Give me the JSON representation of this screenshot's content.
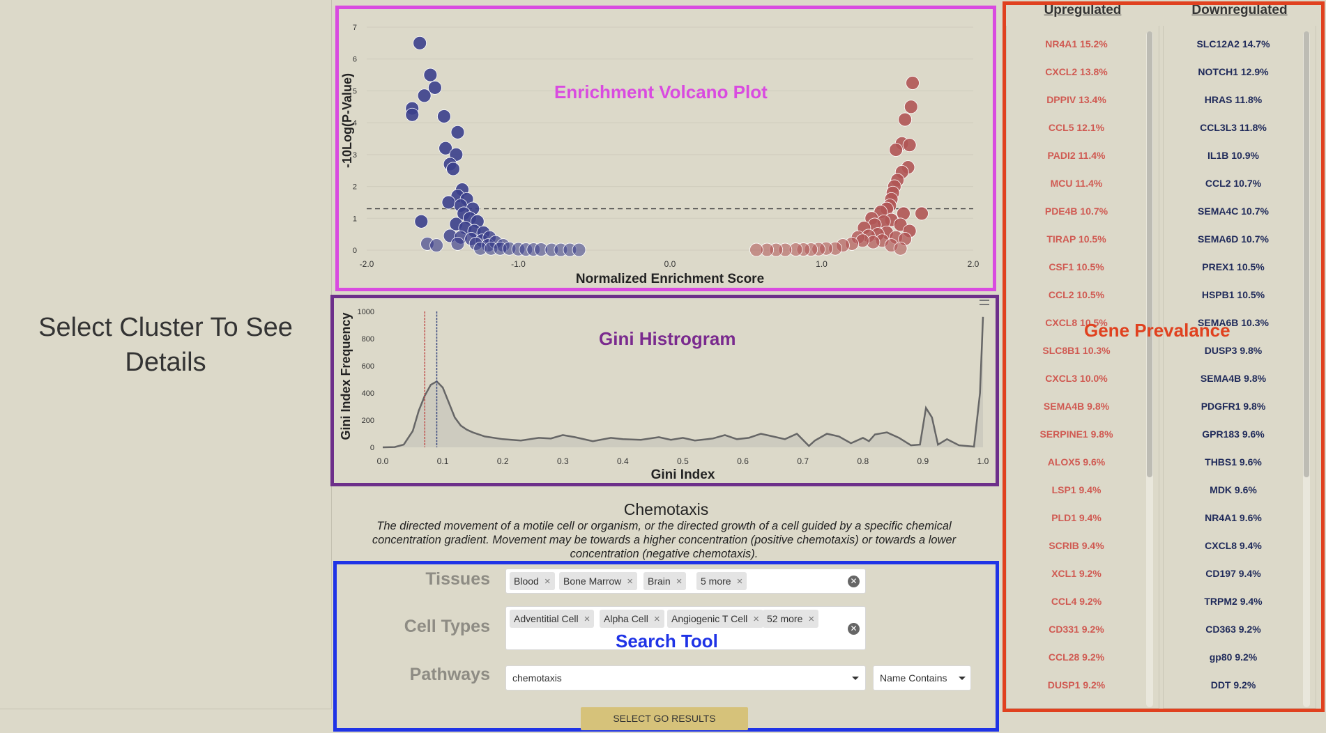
{
  "left_panel": {
    "message": "Select Cluster To See Details"
  },
  "annotations": {
    "volcano": "Enrichment Volcano Plot",
    "gini": "Gini Histrogram",
    "search": "Search Tool",
    "gene": "Gene Prevalance",
    "colors": {
      "volcano": "#d94be0",
      "gini": "#6d2f8a",
      "search": "#1f33e6",
      "gene": "#e0411f"
    }
  },
  "chart_data": [
    {
      "type": "scatter",
      "title": "",
      "xlabel": "Normalized Enrichment Score",
      "ylabel": "-10Log(P-Value)",
      "xlim": [
        -2.0,
        2.0
      ],
      "ylim": [
        0,
        7
      ],
      "x_ticks": [
        "-2.0",
        "-1.0",
        "0.0",
        "1.0",
        "2.0"
      ],
      "y_ticks": [
        "0",
        "1",
        "2",
        "3",
        "4",
        "5",
        "6",
        "7"
      ],
      "threshold_y": 1.3,
      "grid": true,
      "series": [
        {
          "color": "#3b3f8c",
          "points": [
            [
              -1.65,
              6.5
            ],
            [
              -1.58,
              5.5
            ],
            [
              -1.55,
              5.1
            ],
            [
              -1.62,
              4.85
            ],
            [
              -1.7,
              4.45
            ],
            [
              -1.7,
              4.25
            ],
            [
              -1.49,
              4.2
            ],
            [
              -1.4,
              3.7
            ],
            [
              -1.48,
              3.2
            ],
            [
              -1.41,
              3.0
            ],
            [
              -1.45,
              2.7
            ],
            [
              -1.43,
              2.55
            ],
            [
              -1.37,
              1.9
            ],
            [
              -1.4,
              1.7
            ],
            [
              -1.34,
              1.6
            ],
            [
              -1.46,
              1.5
            ],
            [
              -1.38,
              1.4
            ],
            [
              -1.3,
              1.3
            ],
            [
              -1.36,
              1.15
            ],
            [
              -1.32,
              1.0
            ],
            [
              -1.64,
              0.9
            ],
            [
              -1.27,
              0.9
            ],
            [
              -1.41,
              0.82
            ],
            [
              -1.35,
              0.7
            ],
            [
              -1.29,
              0.6
            ],
            [
              -1.23,
              0.55
            ],
            [
              -1.45,
              0.45
            ],
            [
              -1.38,
              0.4
            ],
            [
              -1.31,
              0.35
            ],
            [
              -1.24,
              0.3
            ],
            [
              -1.19,
              0.4
            ],
            [
              -1.6,
              0.2
            ],
            [
              -1.54,
              0.15
            ],
            [
              -1.4,
              0.2
            ],
            [
              -1.28,
              0.2
            ],
            [
              -1.2,
              0.15
            ],
            [
              -1.15,
              0.25
            ],
            [
              -1.1,
              0.15
            ],
            [
              -1.25,
              0.05
            ],
            [
              -1.18,
              0.05
            ],
            [
              -1.12,
              0.05
            ],
            [
              -1.06,
              0.05
            ],
            [
              -1.0,
              0.03
            ],
            [
              -0.95,
              0.02
            ],
            [
              -0.9,
              0.02
            ],
            [
              -0.85,
              0.02
            ],
            [
              -0.78,
              0.01
            ],
            [
              -0.72,
              0.01
            ],
            [
              -0.66,
              0.01
            ],
            [
              -0.6,
              0.01
            ]
          ]
        },
        {
          "color": "#b05555",
          "points": [
            [
              1.6,
              5.25
            ],
            [
              1.59,
              4.5
            ],
            [
              1.55,
              4.1
            ],
            [
              1.53,
              3.35
            ],
            [
              1.58,
              3.3
            ],
            [
              1.49,
              3.15
            ],
            [
              1.57,
              2.6
            ],
            [
              1.53,
              2.45
            ],
            [
              1.5,
              2.2
            ],
            [
              1.48,
              2.0
            ],
            [
              1.47,
              1.8
            ],
            [
              1.46,
              1.6
            ],
            [
              1.45,
              1.4
            ],
            [
              1.43,
              1.3
            ],
            [
              1.66,
              1.15
            ],
            [
              1.54,
              1.15
            ],
            [
              1.39,
              1.2
            ],
            [
              1.33,
              1.0
            ],
            [
              1.46,
              0.95
            ],
            [
              1.41,
              0.9
            ],
            [
              1.52,
              0.8
            ],
            [
              1.35,
              0.8
            ],
            [
              1.28,
              0.7
            ],
            [
              1.58,
              0.6
            ],
            [
              1.43,
              0.55
            ],
            [
              1.37,
              0.5
            ],
            [
              1.31,
              0.45
            ],
            [
              1.24,
              0.4
            ],
            [
              1.49,
              0.4
            ],
            [
              1.55,
              0.35
            ],
            [
              1.4,
              0.3
            ],
            [
              1.34,
              0.25
            ],
            [
              1.27,
              0.3
            ],
            [
              1.2,
              0.2
            ],
            [
              1.14,
              0.15
            ],
            [
              1.46,
              0.15
            ],
            [
              1.52,
              0.05
            ],
            [
              1.09,
              0.05
            ],
            [
              1.03,
              0.05
            ],
            [
              0.98,
              0.03
            ],
            [
              0.93,
              0.02
            ],
            [
              0.88,
              0.02
            ],
            [
              0.83,
              0.02
            ],
            [
              0.76,
              0.01
            ],
            [
              0.7,
              0.01
            ],
            [
              0.64,
              0.01
            ],
            [
              0.57,
              0.01
            ]
          ]
        }
      ]
    },
    {
      "type": "area",
      "title": "",
      "xlabel": "Gini Index",
      "ylabel": "Gini Index Frequency",
      "xlim": [
        0.0,
        1.0
      ],
      "ylim": [
        0,
        1000
      ],
      "x_ticks": [
        "0.0",
        "0.1",
        "0.2",
        "0.3",
        "0.4",
        "0.5",
        "0.6",
        "0.7",
        "0.8",
        "0.9",
        "1.0"
      ],
      "y_ticks": [
        "0",
        "200",
        "400",
        "600",
        "800",
        "1000"
      ],
      "markers": [
        {
          "x": 0.07,
          "color": "#c0504d"
        },
        {
          "x": 0.09,
          "color": "#3b4a80"
        }
      ],
      "points": [
        [
          0.0,
          0
        ],
        [
          0.02,
          2
        ],
        [
          0.035,
          20
        ],
        [
          0.05,
          120
        ],
        [
          0.06,
          270
        ],
        [
          0.07,
          380
        ],
        [
          0.08,
          460
        ],
        [
          0.09,
          485
        ],
        [
          0.1,
          440
        ],
        [
          0.11,
          330
        ],
        [
          0.12,
          220
        ],
        [
          0.13,
          160
        ],
        [
          0.14,
          130
        ],
        [
          0.15,
          110
        ],
        [
          0.17,
          80
        ],
        [
          0.2,
          60
        ],
        [
          0.23,
          50
        ],
        [
          0.26,
          70
        ],
        [
          0.28,
          65
        ],
        [
          0.3,
          90
        ],
        [
          0.32,
          75
        ],
        [
          0.35,
          45
        ],
        [
          0.38,
          70
        ],
        [
          0.4,
          60
        ],
        [
          0.43,
          55
        ],
        [
          0.46,
          75
        ],
        [
          0.48,
          55
        ],
        [
          0.5,
          70
        ],
        [
          0.52,
          50
        ],
        [
          0.55,
          65
        ],
        [
          0.57,
          90
        ],
        [
          0.59,
          60
        ],
        [
          0.61,
          70
        ],
        [
          0.63,
          100
        ],
        [
          0.65,
          80
        ],
        [
          0.67,
          60
        ],
        [
          0.69,
          100
        ],
        [
          0.7,
          55
        ],
        [
          0.71,
          10
        ],
        [
          0.72,
          50
        ],
        [
          0.74,
          100
        ],
        [
          0.76,
          80
        ],
        [
          0.78,
          30
        ],
        [
          0.8,
          70
        ],
        [
          0.81,
          45
        ],
        [
          0.82,
          95
        ],
        [
          0.84,
          110
        ],
        [
          0.86,
          70
        ],
        [
          0.88,
          15
        ],
        [
          0.895,
          20
        ],
        [
          0.905,
          290
        ],
        [
          0.915,
          220
        ],
        [
          0.925,
          20
        ],
        [
          0.94,
          60
        ],
        [
          0.96,
          15
        ],
        [
          0.985,
          5
        ],
        [
          0.995,
          400
        ],
        [
          1.0,
          960
        ]
      ]
    }
  ],
  "pathway": {
    "title": "Chemotaxis",
    "description": "The directed movement of a motile cell or organism, or the directed growth of a cell guided by a specific chemical concentration gradient. Movement may be towards a higher concentration (positive chemotaxis) or towards a lower concentration (negative chemotaxis)."
  },
  "search": {
    "tissues_label": "Tissues",
    "tissues": [
      "Blood",
      "Bone Marrow",
      "Brain",
      "5 more"
    ],
    "celltypes_label": "Cell Types",
    "celltypes": [
      "Adventitial Cell",
      "Alpha Cell",
      "Angiogenic T Cell",
      "52 more"
    ],
    "pathways_label": "Pathways",
    "pathway_value": "chemotaxis",
    "match_mode": "Name Contains",
    "chip_close": "×",
    "clear_symbol": "✕",
    "button_label": "SELECT GO RESULTS"
  },
  "genes": {
    "up_header": "Upregulated",
    "down_header": "Downregulated",
    "up_color": "#d05a52",
    "down_color": "#1f2a5a",
    "up": [
      "NR4A1 15.2%",
      "CXCL2 13.8%",
      "DPPIV 13.4%",
      "CCL5 12.1%",
      "PADI2 11.4%",
      "MCU 11.4%",
      "PDE4B 10.7%",
      "TIRAP 10.5%",
      "CSF1 10.5%",
      "CCL2 10.5%",
      "CXCL8 10.5%",
      "SLC8B1 10.3%",
      "CXCL3 10.0%",
      "SEMA4B 9.8%",
      "SERPINE1 9.8%",
      "ALOX5 9.6%",
      "LSP1 9.4%",
      "PLD1 9.4%",
      "SCRIB 9.4%",
      "XCL1 9.2%",
      "CCL4 9.2%",
      "CD331 9.2%",
      "CCL28 9.2%",
      "DUSP1 9.2%"
    ],
    "down": [
      "SLC12A2 14.7%",
      "NOTCH1 12.9%",
      "HRAS 11.8%",
      "CCL3L3 11.8%",
      "IL1B 10.9%",
      "CCL2 10.7%",
      "SEMA4C 10.7%",
      "SEMA6D 10.7%",
      "PREX1 10.5%",
      "HSPB1 10.5%",
      "SEMA6B 10.3%",
      "DUSP3 9.8%",
      "SEMA4B 9.8%",
      "PDGFR1 9.8%",
      "GPR183 9.6%",
      "THBS1 9.6%",
      "MDK 9.6%",
      "NR4A1 9.6%",
      "CXCL8 9.4%",
      "CD197 9.4%",
      "TRPM2 9.4%",
      "CD363 9.2%",
      "gp80 9.2%",
      "DDT 9.2%"
    ]
  }
}
